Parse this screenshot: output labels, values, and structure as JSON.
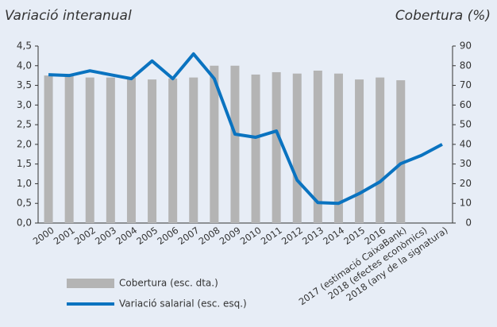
{
  "chart_data": {
    "type": "bar-line",
    "title": "Variació interanual",
    "y2_title": "Cobertura (%)",
    "categories": [
      "2000",
      "2001",
      "2002",
      "2003",
      "2004",
      "2005",
      "2006",
      "2007",
      "2008",
      "2009",
      "2010",
      "2011",
      "2012",
      "2013",
      "2014",
      "2015",
      "2016",
      "2017 (estimació CaixaBank)",
      "2018 (efectes econòmics)",
      "2018 (any de la signatura)"
    ],
    "series": [
      {
        "name": "Cobertura (esc. dta.)",
        "type": "bar",
        "axis": "y2",
        "color": "#b4b4b4",
        "values": [
          75,
          75,
          74,
          74,
          74,
          73,
          73.5,
          74,
          80,
          80,
          75.5,
          76.7,
          76,
          77.5,
          76,
          73,
          74,
          72.6,
          null,
          null
        ]
      },
      {
        "name": "Variació salarial (esc. esq.)",
        "type": "line",
        "axis": "y",
        "color": "#0a73c0",
        "values": [
          3.77,
          3.75,
          3.87,
          3.77,
          3.67,
          4.12,
          3.67,
          4.3,
          3.67,
          2.26,
          2.18,
          2.34,
          1.09,
          0.52,
          0.5,
          0.75,
          1.05,
          1.51,
          1.72,
          2.0
        ]
      }
    ],
    "ylim": [
      0,
      4.5
    ],
    "yticks": [
      {
        "value": 0,
        "label": "0,0"
      },
      {
        "value": 0.5,
        "label": "0,5"
      },
      {
        "value": 1,
        "label": "1,0"
      },
      {
        "value": 1.5,
        "label": "1,5"
      },
      {
        "value": 2,
        "label": "2,0"
      },
      {
        "value": 2.5,
        "label": "2,5"
      },
      {
        "value": 3,
        "label": "3,0"
      },
      {
        "value": 3.5,
        "label": "3,5"
      },
      {
        "value": 4,
        "label": "4,0"
      },
      {
        "value": 4.5,
        "label": "4,5"
      }
    ],
    "y2lim": [
      0,
      90
    ],
    "y2ticks": [
      0,
      10,
      20,
      30,
      40,
      50,
      60,
      70,
      80,
      90
    ]
  }
}
